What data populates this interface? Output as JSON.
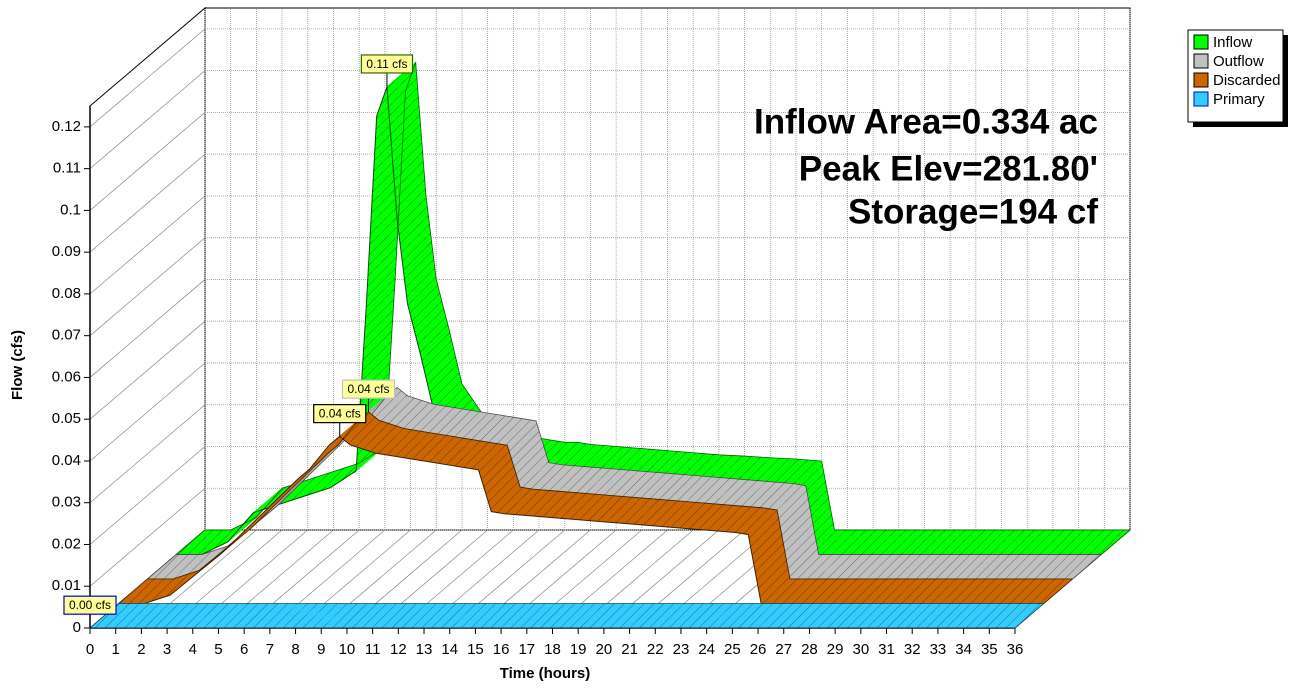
{
  "chart_data": {
    "type": "ribbon3d",
    "x_label": "Time  (hours)",
    "y_label": "Flow  (cfs)",
    "xlim": [
      0,
      36
    ],
    "ylim": [
      0,
      0.125
    ],
    "xticks": [
      0,
      1,
      2,
      3,
      4,
      5,
      6,
      7,
      8,
      9,
      10,
      11,
      12,
      13,
      14,
      15,
      16,
      17,
      18,
      19,
      20,
      21,
      22,
      23,
      24,
      25,
      26,
      27,
      28,
      29,
      30,
      31,
      32,
      33,
      34,
      35,
      36
    ],
    "yticks": [
      0,
      0.01,
      0.02,
      0.03,
      0.04,
      0.05,
      0.06,
      0.07,
      0.08,
      0.09,
      0.1,
      0.11,
      0.12
    ],
    "grid": true,
    "legend_position": "upper right",
    "annotations": [
      "Inflow Area=0.334 ac",
      "Peak Elev=281.80'",
      "Storage=194 cf"
    ],
    "x": [
      0,
      1,
      2,
      3,
      4,
      5,
      6,
      7,
      7.4,
      7.8,
      8.2,
      8.6,
      9,
      9.5,
      10,
      11,
      12,
      13,
      14,
      14.5,
      15,
      16,
      17,
      18,
      19,
      20,
      21,
      22,
      23,
      24,
      24.5,
      25,
      25.5,
      26,
      28,
      30,
      32,
      34,
      36
    ],
    "series": [
      {
        "name": "Inflow",
        "color": "#00ff00",
        "peak_label": "0.11 cfs",
        "values": [
          0,
          0,
          0.003,
          0.01,
          0.012,
          0.014,
          0.016,
          0.02,
          0.06,
          0.105,
          0.112,
          0.08,
          0.06,
          0.048,
          0.035,
          0.026,
          0.023,
          0.022,
          0.021,
          0.021,
          0.0205,
          0.02,
          0.0195,
          0.019,
          0.0185,
          0.018,
          0.0177,
          0.0173,
          0.017,
          0.0165,
          0,
          0,
          0,
          0,
          0,
          0,
          0,
          0,
          0
        ]
      },
      {
        "name": "Outflow",
        "color": "#c0c0c0",
        "peak_label": "0.04 cfs",
        "values": [
          0,
          0,
          0.002,
          0.007,
          0.012,
          0.018,
          0.024,
          0.03,
          0.032,
          0.035,
          0.038,
          0.04,
          0.038,
          0.037,
          0.036,
          0.035,
          0.034,
          0.033,
          0.032,
          0.022,
          0.0215,
          0.021,
          0.0205,
          0.02,
          0.0195,
          0.019,
          0.0185,
          0.018,
          0.0175,
          0.017,
          0.0165,
          0,
          0,
          0,
          0,
          0,
          0,
          0,
          0
        ]
      },
      {
        "name": "Discarded",
        "color": "#cc6600",
        "peak_label": "0.04 cfs",
        "values": [
          0,
          0,
          0.002,
          0.007,
          0.012,
          0.018,
          0.024,
          0.03,
          0.032,
          0.035,
          0.038,
          0.04,
          0.038,
          0.037,
          0.036,
          0.035,
          0.034,
          0.033,
          0.032,
          0.022,
          0.0215,
          0.021,
          0.0205,
          0.02,
          0.0195,
          0.019,
          0.0185,
          0.018,
          0.0175,
          0.017,
          0.0165,
          0,
          0,
          0,
          0,
          0,
          0,
          0,
          0
        ]
      },
      {
        "name": "Primary",
        "color": "#33ccff",
        "peak_label": "0.00 cfs",
        "values": [
          0,
          0,
          0,
          0,
          0,
          0,
          0,
          0,
          0,
          0,
          0,
          0,
          0,
          0,
          0,
          0,
          0,
          0,
          0,
          0,
          0,
          0,
          0,
          0,
          0,
          0,
          0,
          0,
          0,
          0,
          0,
          0,
          0,
          0,
          0,
          0,
          0,
          0,
          0
        ]
      }
    ]
  }
}
